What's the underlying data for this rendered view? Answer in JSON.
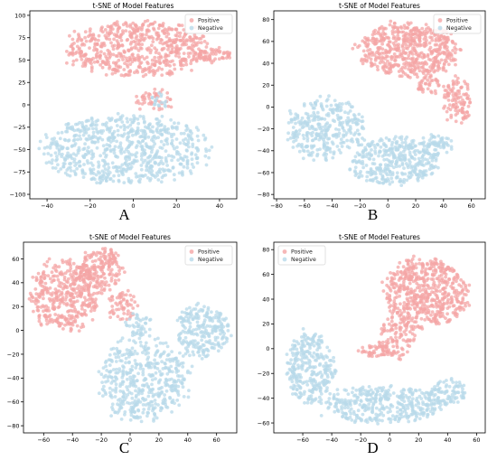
{
  "colors": {
    "positive": "#f4a6a6",
    "negative": "#b8d9ea"
  },
  "chart_data": [
    {
      "type": "scatter",
      "panel_letter": "A",
      "title": "t-SNE of Model Features",
      "legend": {
        "placement": "top-right",
        "entries": [
          "Positive",
          "Negative"
        ]
      },
      "xlim": [
        -48,
        48
      ],
      "ylim": [
        -105,
        105
      ],
      "x_ticks": [
        -40,
        -20,
        0,
        20,
        40
      ],
      "x_tick_labels": [
        "−40",
        "−20",
        "0",
        "20",
        "40"
      ],
      "y_ticks": [
        -100,
        -75,
        -50,
        -25,
        0,
        25,
        50,
        75,
        100
      ],
      "y_tick_labels": [
        "−100",
        "−75",
        "−50",
        "−25",
        "0",
        "25",
        "50",
        "75",
        "100"
      ],
      "series": [
        {
          "name": "Positive",
          "regions": [
            {
              "cx": 2,
              "cy": 62,
              "rx": 33,
              "ry": 30,
              "n": 620
            },
            {
              "cx": 38,
              "cy": 55,
              "rx": 7,
              "ry": 8,
              "n": 50
            },
            {
              "cx": 10,
              "cy": 5,
              "rx": 10,
              "ry": 12,
              "n": 45
            }
          ]
        },
        {
          "name": "Negative",
          "regions": [
            {
              "cx": -4,
              "cy": -50,
              "rx": 38,
              "ry": 37,
              "n": 720
            },
            {
              "cx": 12,
              "cy": 5,
              "rx": 4,
              "ry": 8,
              "n": 18
            }
          ]
        }
      ]
    },
    {
      "type": "scatter",
      "panel_letter": "B",
      "title": "t-SNE of Model Features",
      "legend": {
        "placement": "top-right",
        "entries": [
          "Positive",
          "Negative"
        ]
      },
      "xlim": [
        -82,
        70
      ],
      "ylim": [
        -84,
        88
      ],
      "x_ticks": [
        -80,
        -60,
        -40,
        -20,
        0,
        20,
        40,
        60
      ],
      "x_tick_labels": [
        "−80",
        "−60",
        "−40",
        "−20",
        "0",
        "20",
        "40",
        "60"
      ],
      "y_ticks": [
        -80,
        -60,
        -40,
        -20,
        0,
        20,
        40,
        60,
        80
      ],
      "y_tick_labels": [
        "−80",
        "−60",
        "−40",
        "−20",
        "0",
        "20",
        "40",
        "60",
        "80"
      ],
      "series": [
        {
          "name": "Positive",
          "regions": [
            {
              "cx": 15,
              "cy": 52,
              "rx": 35,
              "ry": 24,
              "n": 560
            },
            {
              "cx": 50,
              "cy": 5,
              "rx": 10,
              "ry": 22,
              "n": 110
            },
            {
              "cx": 30,
              "cy": 20,
              "rx": 10,
              "ry": 8,
              "n": 40
            }
          ]
        },
        {
          "name": "Negative",
          "regions": [
            {
              "cx": -45,
              "cy": -20,
              "rx": 28,
              "ry": 28,
              "n": 330
            },
            {
              "cx": 5,
              "cy": -50,
              "rx": 32,
              "ry": 22,
              "n": 370
            },
            {
              "cx": 35,
              "cy": -35,
              "rx": 12,
              "ry": 10,
              "n": 60
            }
          ]
        }
      ]
    },
    {
      "type": "scatter",
      "panel_letter": "C",
      "title": "t-SNE of Model Features",
      "legend": {
        "placement": "top-right",
        "entries": [
          "Positive",
          "Negative"
        ]
      },
      "xlim": [
        -74,
        74
      ],
      "ylim": [
        -86,
        74
      ],
      "x_ticks": [
        -60,
        -40,
        -20,
        0,
        20,
        40,
        60
      ],
      "x_tick_labels": [
        "−60",
        "−40",
        "−20",
        "0",
        "20",
        "40",
        "60"
      ],
      "y_ticks": [
        -80,
        -60,
        -40,
        -20,
        0,
        20,
        40,
        60
      ],
      "y_tick_labels": [
        "−80",
        "−60",
        "−40",
        "−20",
        "0",
        "20",
        "40",
        "60"
      ],
      "series": [
        {
          "name": "Positive",
          "regions": [
            {
              "cx": -45,
              "cy": 30,
              "rx": 24,
              "ry": 30,
              "n": 420
            },
            {
              "cx": -20,
              "cy": 50,
              "rx": 15,
              "ry": 18,
              "n": 170
            },
            {
              "cx": -5,
              "cy": 20,
              "rx": 10,
              "ry": 12,
              "n": 60
            }
          ]
        },
        {
          "name": "Negative",
          "regions": [
            {
              "cx": 10,
              "cy": -40,
              "rx": 30,
              "ry": 35,
              "n": 480
            },
            {
              "cx": 50,
              "cy": 0,
              "rx": 18,
              "ry": 22,
              "n": 240
            },
            {
              "cx": 5,
              "cy": 5,
              "rx": 10,
              "ry": 10,
              "n": 40
            }
          ]
        }
      ]
    },
    {
      "type": "scatter",
      "panel_letter": "D",
      "title": "t-SNE of Model Features",
      "legend": {
        "placement": "top-left",
        "entries": [
          "Positive",
          "Negative"
        ]
      },
      "xlim": [
        -80,
        66
      ],
      "ylim": [
        -68,
        86
      ],
      "x_ticks": [
        -60,
        -40,
        -20,
        0,
        20,
        40,
        60
      ],
      "x_tick_labels": [
        "−60",
        "−40",
        "−20",
        "0",
        "20",
        "40",
        "60"
      ],
      "y_ticks": [
        -60,
        -40,
        -20,
        0,
        20,
        40,
        60,
        80
      ],
      "y_tick_labels": [
        "−60",
        "−40",
        "−20",
        "0",
        "20",
        "40",
        "60",
        "80"
      ],
      "series": [
        {
          "name": "Positive",
          "regions": [
            {
              "cx": 25,
              "cy": 45,
              "rx": 28,
              "ry": 28,
              "n": 560
            },
            {
              "cx": 5,
              "cy": 10,
              "rx": 12,
              "ry": 18,
              "n": 110
            },
            {
              "cx": -10,
              "cy": -2,
              "rx": 10,
              "ry": 5,
              "n": 40
            }
          ]
        },
        {
          "name": "Negative",
          "regions": [
            {
              "cx": -55,
              "cy": -15,
              "rx": 16,
              "ry": 28,
              "n": 300
            },
            {
              "cx": -5,
              "cy": -45,
              "rx": 40,
              "ry": 15,
              "n": 380
            },
            {
              "cx": 40,
              "cy": -35,
              "rx": 14,
              "ry": 10,
              "n": 90
            }
          ]
        }
      ]
    }
  ]
}
